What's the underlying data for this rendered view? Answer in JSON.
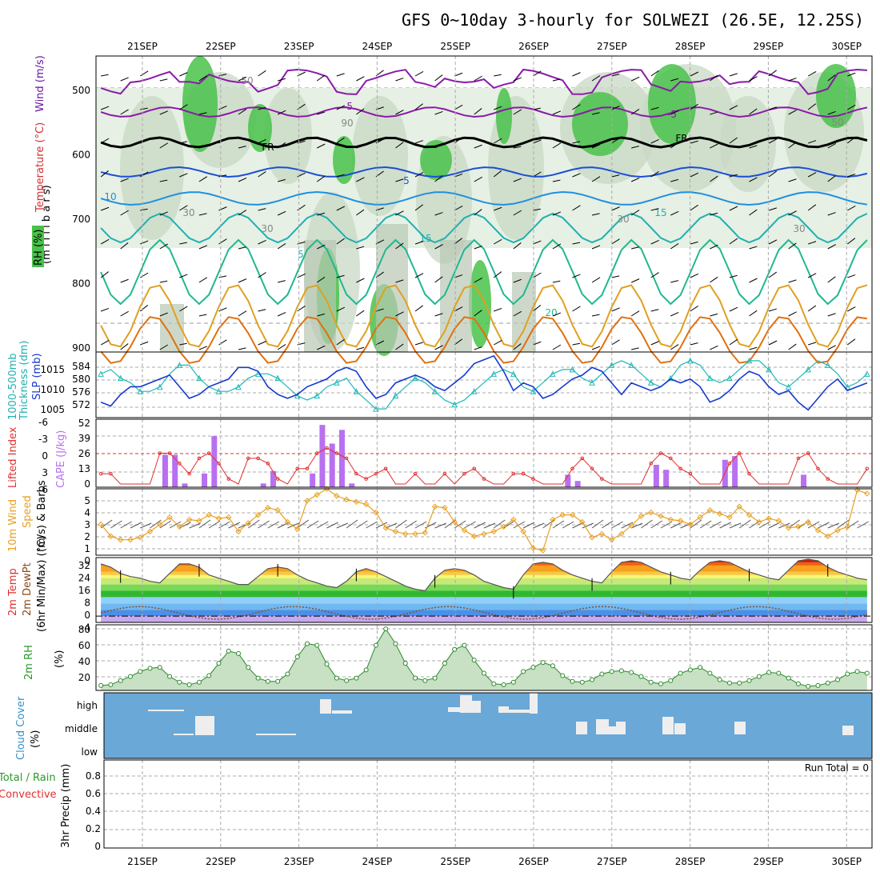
{
  "title": "GFS 0~10day 3-hourly for SOLWEZI (26.5E, 12.25S)",
  "dates": [
    "21SEP",
    "22SEP",
    "23SEP",
    "24SEP",
    "25SEP",
    "26SEP",
    "27SEP",
    "28SEP",
    "29SEP",
    "30SEP"
  ],
  "panels": {
    "upper": {
      "ylabels": [
        "Wind (m/s)",
        "Temperature (°C)",
        "RH (%)",
        "(m i l l i b a r s)"
      ],
      "ticks": [
        "500",
        "600",
        "700",
        "800",
        "900"
      ],
      "contour_labels": {
        "fr1": "FR",
        "fr2": "FR",
        "m5a": "-5",
        "m5b": "-5",
        "p5a": "5",
        "p5b": "5",
        "c10": "10",
        "c15a": "15",
        "c15b": "15",
        "c20": "20",
        "rh50a": "50",
        "rh50b": "50",
        "rh30a": "30",
        "rh30b": "30",
        "rh30c": "30",
        "rh30d": "30",
        "rh90": "90"
      }
    },
    "slp": {
      "ylabels": [
        "1000-500mb",
        "Thickness (dm)",
        "SLP (mb)"
      ],
      "left_ticks": [
        "584",
        "580",
        "576",
        "572"
      ],
      "right_ticks": [
        "1015",
        "1010",
        "1005"
      ]
    },
    "cape": {
      "ylabels": [
        "Lifted Index",
        "CAPE (J/kg)"
      ],
      "left_ticks": [
        "-6",
        "-3",
        "0",
        "3",
        "6"
      ],
      "right_ticks": [
        "52",
        "39",
        "26",
        "13",
        "0"
      ]
    },
    "wind": {
      "ylabels": [
        "10m Wind",
        "Speed",
        "(m/s) & Barbs"
      ],
      "ticks": [
        "5",
        "4",
        "3",
        "2",
        "1",
        "0"
      ]
    },
    "temp": {
      "ylabels": [
        "2m Temp",
        "2m DewPt",
        "(6hr Min/Max) (°C)"
      ],
      "ticks": [
        "32",
        "24",
        "16",
        "8",
        "0",
        "-4"
      ]
    },
    "rh": {
      "ylabels": [
        "2m RH",
        "(%)"
      ],
      "ticks": [
        "80",
        "60",
        "40",
        "20"
      ]
    },
    "cloud": {
      "ylabels": [
        "Cloud Cover",
        "(%)"
      ],
      "levels": [
        "high",
        "middle",
        "low"
      ]
    },
    "precip": {
      "ylabels": [
        "Total / Rain",
        "Convective",
        "3hr Precip (mm)"
      ],
      "ticks": [
        "0.8",
        "0.6",
        "0.4",
        "0.2",
        "0"
      ],
      "run_total": "Run Total = 0"
    }
  },
  "chart_data": [
    {
      "type": "line",
      "name": "SLP",
      "ylim": [
        1002,
        1019
      ],
      "x": [
        0,
        1,
        2,
        3,
        4,
        5,
        6,
        7,
        8,
        9,
        10,
        11,
        12,
        13,
        14,
        15,
        16,
        17,
        18,
        19,
        20,
        21,
        22,
        23,
        24,
        25,
        26,
        27,
        28,
        29,
        30,
        31,
        32,
        33,
        34,
        35,
        36,
        37,
        38,
        39,
        40,
        41,
        42,
        43,
        44,
        45,
        46,
        47,
        48,
        49,
        50,
        51,
        52,
        53,
        54,
        55,
        56,
        57,
        58,
        59,
        60,
        61,
        62,
        63,
        64,
        65,
        66,
        67,
        68,
        69,
        70,
        71,
        72,
        73,
        74,
        75,
        76,
        77,
        78
      ],
      "values": [
        1006,
        1005,
        1008,
        1010,
        1010,
        1011,
        1012,
        1013,
        1010,
        1007,
        1008,
        1010,
        1011,
        1012,
        1015,
        1015,
        1014,
        1010,
        1008,
        1007,
        1008,
        1010,
        1011,
        1012,
        1014,
        1015,
        1014,
        1010,
        1007,
        1008,
        1011,
        1012,
        1013,
        1012,
        1010,
        1009,
        1011,
        1013,
        1016,
        1017,
        1018,
        1014,
        1009,
        1011,
        1010,
        1007,
        1008,
        1010,
        1012,
        1013,
        1015,
        1014,
        1011,
        1008,
        1011,
        1010,
        1009,
        1010,
        1012,
        1011,
        1012,
        1010,
        1006,
        1007,
        1009,
        1012,
        1014,
        1013,
        1010,
        1008,
        1009,
        1006,
        1004,
        1007,
        1010,
        1012,
        1009,
        1010,
        1011
      ]
    },
    {
      "type": "line",
      "name": "Thickness",
      "ylim": [
        571,
        586
      ],
      "x": [
        0,
        1,
        2,
        3,
        4,
        5,
        6,
        7,
        8,
        9,
        10,
        11,
        12,
        13,
        14,
        15,
        16,
        17,
        18,
        19,
        20,
        21,
        22,
        23,
        24,
        25,
        26,
        27,
        28,
        29,
        30,
        31,
        32,
        33,
        34,
        35,
        36,
        37,
        38,
        39,
        40,
        41,
        42,
        43,
        44,
        45,
        46,
        47,
        48,
        49,
        50,
        51,
        52,
        53,
        54,
        55,
        56,
        57,
        58,
        59,
        60,
        61,
        62,
        63,
        64,
        65,
        66,
        67,
        68,
        69,
        70,
        71,
        72,
        73,
        74,
        75,
        76,
        77,
        78
      ],
      "values": [
        581,
        582,
        580,
        579,
        577,
        577,
        578,
        581,
        583,
        583,
        580,
        578,
        577,
        577,
        578,
        580,
        581,
        581,
        580,
        578,
        576,
        575,
        576,
        578,
        579,
        580,
        577,
        575,
        573,
        573,
        576,
        578,
        580,
        579,
        577,
        575,
        574,
        575,
        577,
        579,
        581,
        582,
        581,
        578,
        577,
        579,
        581,
        582,
        582,
        580,
        579,
        581,
        583,
        584,
        583,
        581,
        579,
        578,
        580,
        583,
        584,
        583,
        580,
        579,
        580,
        582,
        584,
        584,
        582,
        579,
        578,
        580,
        582,
        584,
        583,
        581,
        578,
        579,
        581
      ]
    },
    {
      "type": "bar",
      "name": "CAPE (J/kg)",
      "ylim": [
        0,
        52
      ],
      "x": [
        6.5,
        7.5,
        8.5,
        10.5,
        11.5,
        16.5,
        17.5,
        21.5,
        22.5,
        23.5,
        24.5,
        25.5,
        47.5,
        48.5,
        56.5,
        57.5,
        63.5,
        64.5,
        71.5
      ],
      "values": [
        26,
        26,
        3,
        11,
        41,
        3,
        13,
        11,
        50,
        35,
        46,
        3,
        10,
        5,
        18,
        14,
        22,
        25,
        10
      ]
    },
    {
      "type": "line",
      "name": "Lifted Index",
      "ylim": [
        6,
        -6
      ],
      "x": [
        0,
        1,
        2,
        3,
        4,
        5,
        6,
        7,
        8,
        9,
        10,
        11,
        12,
        13,
        14,
        15,
        16,
        17,
        18,
        19,
        20,
        21,
        22,
        23,
        24,
        25,
        26,
        27,
        28,
        29,
        30,
        31,
        32,
        33,
        34,
        35,
        36,
        37,
        38,
        39,
        40,
        41,
        42,
        43,
        44,
        45,
        46,
        47,
        48,
        49,
        50,
        51,
        52,
        53,
        54,
        55,
        56,
        57,
        58,
        59,
        60,
        61,
        62,
        63,
        64,
        65,
        66,
        67,
        68,
        69,
        70,
        71,
        72,
        73,
        74,
        75,
        76,
        77,
        78
      ],
      "values": [
        4,
        4,
        6,
        6,
        6,
        6,
        0,
        0,
        2,
        4,
        1,
        0,
        2,
        5,
        6,
        1,
        1,
        2,
        5,
        6,
        3,
        3,
        0,
        -1,
        0,
        1,
        4,
        5,
        4,
        3,
        6,
        6,
        4,
        6,
        6,
        4,
        6,
        4,
        3,
        5,
        6,
        6,
        4,
        4,
        5,
        6,
        6,
        6,
        3,
        1,
        3,
        5,
        6,
        6,
        6,
        6,
        2,
        0,
        1,
        3,
        4,
        6,
        6,
        6,
        2,
        0,
        4,
        6,
        6,
        6,
        6,
        1,
        0,
        3,
        5,
        6,
        6,
        6,
        3
      ]
    },
    {
      "type": "line",
      "name": "10m Wind Speed",
      "ylim": [
        0,
        5.6
      ],
      "x": [
        0,
        1,
        2,
        3,
        4,
        5,
        6,
        7,
        8,
        9,
        10,
        11,
        12,
        13,
        14,
        15,
        16,
        17,
        18,
        19,
        20,
        21,
        22,
        23,
        24,
        25,
        26,
        27,
        28,
        29,
        30,
        31,
        32,
        33,
        34,
        35,
        36,
        37,
        38,
        39,
        40,
        41,
        42,
        43,
        44,
        45,
        46,
        47,
        48,
        49,
        50,
        51,
        52,
        53,
        54,
        55,
        56,
        57,
        58,
        59,
        60,
        61,
        62,
        63,
        64,
        65,
        66,
        67,
        68,
        69,
        70,
        71,
        72,
        73,
        74,
        75,
        76,
        77,
        78
      ],
      "values": [
        2.6,
        1.6,
        1.3,
        1.3,
        1.5,
        2.0,
        2.6,
        3.2,
        2.4,
        3.0,
        2.9,
        3.4,
        3.1,
        3.2,
        2.0,
        2.7,
        3.4,
        4.0,
        3.8,
        2.8,
        2.2,
        4.6,
        5.1,
        5.6,
        5.0,
        4.7,
        4.5,
        4.3,
        3.6,
        2.3,
        2.0,
        1.8,
        1.8,
        1.9,
        4.1,
        4.0,
        2.8,
        2.1,
        1.6,
        1.8,
        2.0,
        2.4,
        3.0,
        2.0,
        0.6,
        0.4,
        3.0,
        3.4,
        3.4,
        2.8,
        1.5,
        1.8,
        1.3,
        1.8,
        2.5,
        3.3,
        3.6,
        3.3,
        3.0,
        2.9,
        2.6,
        3.2,
        3.8,
        3.5,
        3.2,
        4.1,
        3.4,
        2.8,
        3.1,
        2.9,
        2.3,
        2.4,
        2.8,
        2.1,
        1.6,
        2.1,
        2.4,
        5.5,
        5.2
      ]
    },
    {
      "type": "area",
      "name": "2m Temp",
      "ylim": [
        -4,
        37
      ],
      "x": [
        0,
        1,
        2,
        3,
        4,
        5,
        6,
        7,
        8,
        9,
        10,
        11,
        12,
        13,
        14,
        15,
        16,
        17,
        18,
        19,
        20,
        21,
        22,
        23,
        24,
        25,
        26,
        27,
        28,
        29,
        30,
        31,
        32,
        33,
        34,
        35,
        36,
        37,
        38,
        39,
        40,
        41,
        42,
        43,
        44,
        45,
        46,
        47,
        48,
        49,
        50,
        51,
        52,
        53,
        54,
        55,
        56,
        57,
        58,
        59,
        60,
        61,
        62,
        63,
        64,
        65,
        66,
        67,
        68,
        69,
        70,
        71,
        72,
        73,
        74,
        75,
        76,
        77,
        78
      ],
      "values": [
        33,
        31,
        27,
        25,
        24,
        22,
        21,
        27,
        33,
        33,
        31,
        26,
        24,
        22,
        20,
        20,
        25,
        30,
        31,
        30,
        26,
        23,
        21,
        19,
        18,
        22,
        28,
        30,
        28,
        25,
        22,
        19,
        17,
        16,
        24,
        29,
        30,
        29,
        26,
        22,
        20,
        18,
        17,
        26,
        33,
        34,
        33,
        29,
        26,
        24,
        22,
        21,
        28,
        34,
        35,
        34,
        31,
        28,
        26,
        24,
        23,
        29,
        34,
        35,
        34,
        31,
        28,
        26,
        24,
        23,
        29,
        35,
        36,
        35,
        31,
        28,
        26,
        24,
        23
      ]
    },
    {
      "type": "area",
      "name": "2m RH",
      "ylim": [
        5,
        85
      ],
      "x": [
        0,
        1,
        2,
        3,
        4,
        5,
        6,
        7,
        8,
        9,
        10,
        11,
        12,
        13,
        14,
        15,
        16,
        17,
        18,
        19,
        20,
        21,
        22,
        23,
        24,
        25,
        26,
        27,
        28,
        29,
        30,
        31,
        32,
        33,
        34,
        35,
        36,
        37,
        38,
        39,
        40,
        41,
        42,
        43,
        44,
        45,
        46,
        47,
        48,
        49,
        50,
        51,
        52,
        53,
        54,
        55,
        56,
        57,
        58,
        59,
        60,
        61,
        62,
        63,
        64,
        65,
        66,
        67,
        68,
        69,
        70,
        71,
        72,
        73,
        74,
        75,
        76,
        77,
        78
      ],
      "values": [
        11,
        12,
        17,
        22,
        28,
        32,
        33,
        22,
        15,
        12,
        15,
        23,
        38,
        53,
        50,
        33,
        20,
        16,
        16,
        25,
        46,
        62,
        60,
        37,
        20,
        17,
        20,
        30,
        60,
        80,
        62,
        38,
        20,
        17,
        20,
        38,
        55,
        60,
        42,
        26,
        13,
        12,
        15,
        28,
        33,
        39,
        35,
        23,
        16,
        15,
        18,
        25,
        28,
        29,
        27,
        22,
        15,
        13,
        17,
        26,
        30,
        33,
        26,
        18,
        14,
        14,
        17,
        22,
        27,
        26,
        20,
        13,
        10,
        11,
        14,
        18,
        25,
        28,
        26
      ]
    },
    {
      "type": "table",
      "name": "Cloud Cover",
      "rows": [
        "high",
        "middle",
        "low"
      ],
      "note": "mostly low cloud free; high and middle cloud fragments"
    },
    {
      "type": "bar",
      "name": "3hr Precip (mm)",
      "ylim": [
        0,
        0.9
      ],
      "values": []
    }
  ]
}
